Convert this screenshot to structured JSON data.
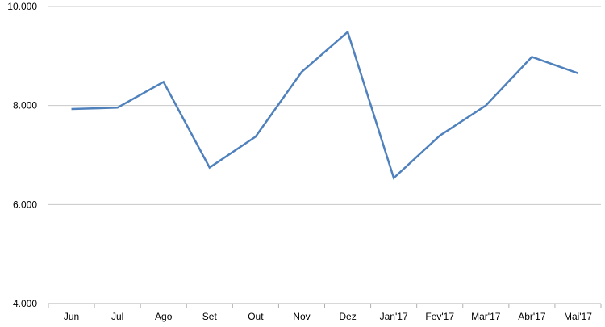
{
  "chart_data": {
    "type": "line",
    "title": "",
    "xlabel": "",
    "ylabel": "",
    "categories": [
      "Jun",
      "Jul",
      "Ago",
      "Set",
      "Out",
      "Nov",
      "Dez",
      "Jan'17",
      "Fev'17",
      "Mar'17",
      "Abr'17",
      "Mai'17"
    ],
    "series": [
      {
        "values": [
          7930,
          7957,
          8477,
          6747,
          7371,
          8678,
          9486,
          6535,
          7392,
          8000,
          8982,
          8651
        ],
        "color": "#4f81bd"
      }
    ],
    "ylim": [
      4000,
      10000
    ],
    "yticks": [
      4000,
      6000,
      8000,
      10000
    ],
    "ytick_labels": [
      "4.000",
      "6.000",
      "8.000",
      "10.000"
    ],
    "grid": true,
    "legend": "none",
    "grid_color": "#c8c8c8"
  }
}
